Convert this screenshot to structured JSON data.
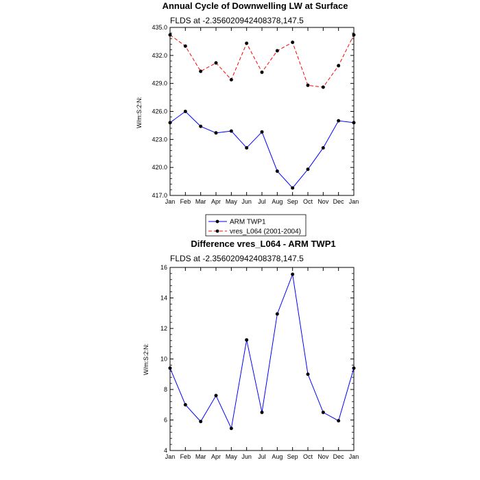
{
  "chart_data": [
    {
      "type": "line",
      "title": "Annual Cycle of Downwelling LW at Surface",
      "subtitle": "FLDS at -2.356020942408378,147.5",
      "ylabel": "W/m:S:2:N:",
      "xlabel": "",
      "categories": [
        "Jan",
        "Feb",
        "Mar",
        "Apr",
        "May",
        "Jun",
        "Jul",
        "Aug",
        "Sep",
        "Oct",
        "Nov",
        "Dec",
        "Jan"
      ],
      "ylim": [
        417.0,
        435.0
      ],
      "yticks": [
        "417.0",
        "420.0",
        "423.0",
        "426.0",
        "429.0",
        "432.0",
        "435.0"
      ],
      "ytick_values": [
        417,
        420,
        423,
        426,
        429,
        432,
        435
      ],
      "series": [
        {
          "name": "ARM TWP1",
          "color": "#0000ff",
          "dash": "solid",
          "values": [
            424.8,
            426.0,
            424.4,
            423.7,
            423.9,
            422.1,
            423.8,
            419.6,
            417.8,
            419.8,
            422.1,
            425.0,
            424.8
          ]
        },
        {
          "name": "vres_L064 (2001-2004)",
          "color": "#ff0000",
          "dash": "dashed",
          "values": [
            434.2,
            433.0,
            430.3,
            431.2,
            429.4,
            433.3,
            430.2,
            432.5,
            433.4,
            428.8,
            428.6,
            430.9,
            434.2
          ]
        }
      ],
      "legend": "below"
    },
    {
      "type": "line",
      "title": "Difference vres_L064 - ARM TWP1",
      "subtitle": "FLDS at -2.356020942408378,147.5",
      "ylabel": "W/m:S:2:N:",
      "xlabel": "",
      "categories": [
        "Jan",
        "Feb",
        "Mar",
        "Apr",
        "May",
        "Jun",
        "Jul",
        "Aug",
        "Sep",
        "Oct",
        "Nov",
        "Dec",
        "Jan"
      ],
      "ylim": [
        4,
        16
      ],
      "yticks": [
        "4",
        "6",
        "8",
        "10",
        "12",
        "14",
        "16"
      ],
      "ytick_values": [
        4,
        6,
        8,
        10,
        12,
        14,
        16
      ],
      "series": [
        {
          "name": "",
          "color": "#0000ff",
          "dash": "solid",
          "values": [
            9.4,
            7.0,
            5.9,
            7.6,
            5.45,
            11.25,
            6.5,
            12.95,
            15.55,
            9.0,
            6.5,
            5.95,
            9.4
          ]
        }
      ]
    }
  ]
}
